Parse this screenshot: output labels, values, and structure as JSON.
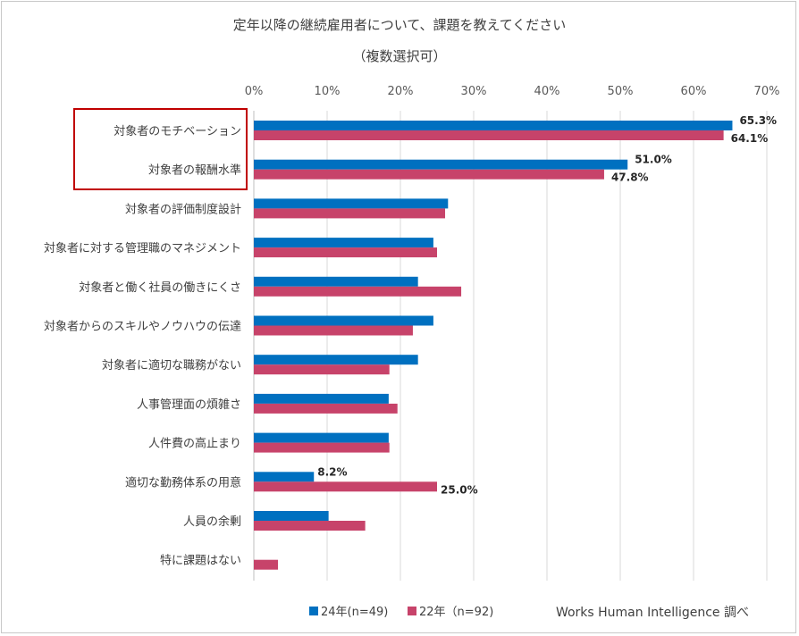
{
  "chart_data": {
    "type": "bar",
    "orientation": "horizontal",
    "title": "定年以降の継続雇用者について、課題を教えてください",
    "subtitle": "（複数選択可）",
    "xlim": [
      0,
      70
    ],
    "xticks": [
      "0%",
      "10%",
      "20%",
      "30%",
      "40%",
      "50%",
      "60%",
      "70%"
    ],
    "grid": true,
    "legend_position": "bottom",
    "categories": [
      "対象者のモチベーション",
      "対象者の報酬水準",
      "対象者の評価制度設計",
      "対象者に対する管理職のマネジメント",
      "対象者と働く社員の働きにくさ",
      "対象者からのスキルやノウハウの伝達",
      "対象者に適切な職務がない",
      "人事管理面の煩雑さ",
      "人件費の高止まり",
      "適切な勤務体系の用意",
      "人員の余剰",
      "特に課題はない"
    ],
    "series": [
      {
        "name": "24年(n=49)",
        "color": "#0070c0",
        "values": [
          65.3,
          51.0,
          26.5,
          24.5,
          22.4,
          24.5,
          22.4,
          18.4,
          18.4,
          8.2,
          10.2,
          0
        ],
        "labels": [
          "65.3%",
          "51.0%",
          "",
          "",
          "",
          "",
          "",
          "",
          "",
          "8.2%",
          "",
          ""
        ]
      },
      {
        "name": "22年（n=92)",
        "color": "#c7436a",
        "values": [
          64.1,
          47.8,
          26.1,
          25.0,
          28.3,
          21.7,
          18.5,
          19.6,
          18.5,
          25.0,
          15.2,
          3.3
        ],
        "labels": [
          "64.1%",
          "47.8%",
          "",
          "",
          "",
          "",
          "",
          "",
          "",
          "25.0%",
          "",
          ""
        ]
      }
    ],
    "highlighted_categories": [
      0,
      1
    ],
    "highlight_color": "#c00000",
    "source": "Works Human Intelligence 調べ"
  }
}
